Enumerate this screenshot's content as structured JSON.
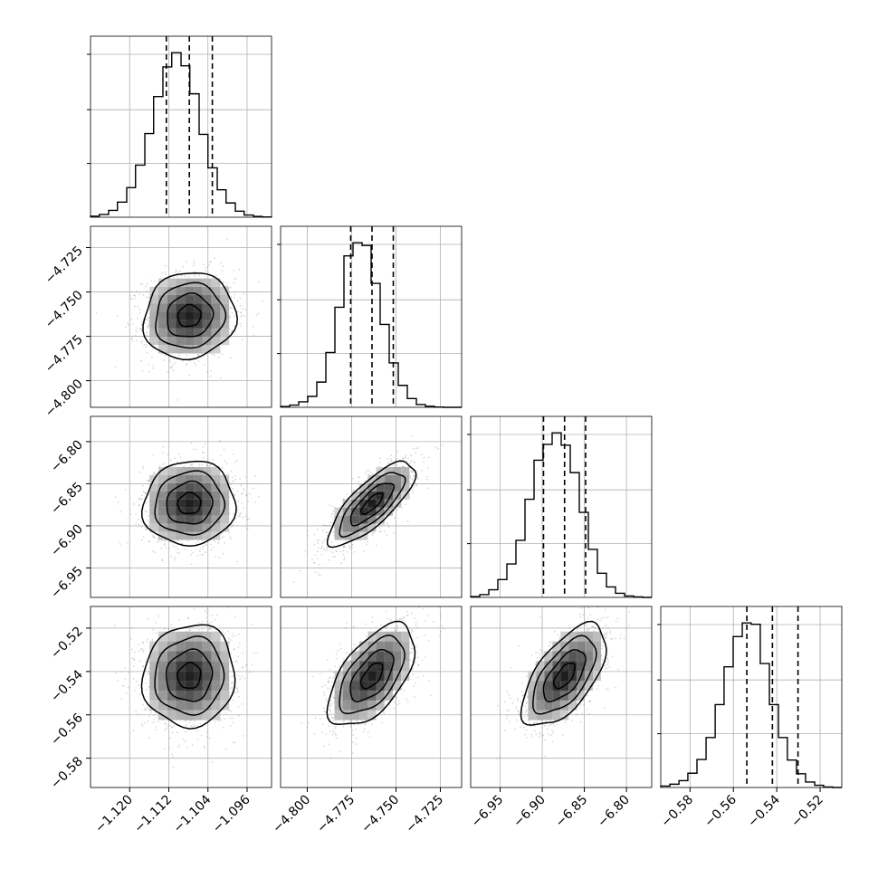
{
  "colors": {
    "line": "#000000",
    "grid": "#b0b0b0",
    "scatter": "#777777",
    "background": "#ffffff"
  },
  "chart_data": {
    "type": "corner",
    "grid": true,
    "n_params": 4,
    "params": [
      {
        "xlim": [
          -1.128,
          -1.091
        ],
        "ticks": [
          -1.12,
          -1.112,
          -1.104,
          -1.096
        ],
        "tick_labels": [
          "−1.120",
          "−1.112",
          "−1.104",
          "−1.096"
        ],
        "quantiles": [
          -1.1125,
          -1.1078,
          -1.1031
        ],
        "hist_bins": [
          -1.128,
          -1.1262,
          -1.1243,
          -1.1225,
          -1.1206,
          -1.1188,
          -1.1169,
          -1.1151,
          -1.1132,
          -1.1114,
          -1.1095,
          -1.1077,
          -1.1058,
          -1.104,
          -1.1021,
          -1.1003,
          -1.0984,
          -1.0966,
          -1.0947,
          -1.0929,
          -1.091
        ],
        "hist_counts": [
          4,
          10,
          25,
          55,
          108,
          190,
          305,
          440,
          548,
          600,
          552,
          450,
          302,
          180,
          100,
          52,
          22,
          8,
          3,
          1
        ]
      },
      {
        "xlim": [
          -4.815,
          -4.713
        ],
        "ticks": [
          -4.8,
          -4.775,
          -4.75,
          -4.725
        ],
        "tick_labels": [
          "−4.800",
          "−4.775",
          "−4.750",
          "−4.725"
        ],
        "quantiles": [
          -4.7755,
          -4.7635,
          -4.7515
        ],
        "hist_bins": [
          -4.815,
          -4.8099,
          -4.8048,
          -4.7997,
          -4.7946,
          -4.7895,
          -4.7844,
          -4.7793,
          -4.7742,
          -4.7691,
          -4.764,
          -4.7589,
          -4.7538,
          -4.7487,
          -4.7436,
          -4.7385,
          -4.7334,
          -4.7283,
          -4.7232,
          -4.7181,
          -4.713
        ],
        "hist_counts": [
          3,
          8,
          20,
          40,
          92,
          200,
          365,
          552,
          600,
          590,
          452,
          302,
          162,
          80,
          32,
          10,
          4,
          1,
          0,
          0
        ]
      },
      {
        "xlim": [
          -6.985,
          -6.77
        ],
        "ticks": [
          -6.95,
          -6.9,
          -6.85,
          -6.8
        ],
        "tick_labels": [
          "−6.95",
          "−6.90",
          "−6.85",
          "−6.80"
        ],
        "quantiles": [
          -6.8985,
          -6.8735,
          -6.8485
        ],
        "hist_bins": [
          -6.985,
          -6.97425,
          -6.9635,
          -6.95275,
          -6.942,
          -6.93125,
          -6.9205,
          -6.90975,
          -6.899,
          -6.88825,
          -6.8775,
          -6.86675,
          -6.856,
          -6.84525,
          -6.8345,
          -6.82375,
          -6.813,
          -6.80225,
          -6.7915,
          -6.78075,
          -6.77
        ],
        "hist_counts": [
          3,
          10,
          28,
          65,
          122,
          208,
          358,
          500,
          558,
          600,
          555,
          455,
          310,
          175,
          88,
          38,
          15,
          5,
          2,
          0
        ]
      },
      {
        "xlim": [
          -0.5935,
          -0.51
        ],
        "ticks": [
          -0.58,
          -0.56,
          -0.54,
          -0.52
        ],
        "tick_labels": [
          "−0.58",
          "−0.56",
          "−0.54",
          "−0.52"
        ],
        "quantiles": [
          -0.5538,
          -0.542,
          -0.5302
        ],
        "hist_bins": [
          -0.5935,
          -0.5893,
          -0.5851,
          -0.581,
          -0.5768,
          -0.5726,
          -0.5684,
          -0.5643,
          -0.5601,
          -0.5559,
          -0.5518,
          -0.5476,
          -0.5434,
          -0.5392,
          -0.5351,
          -0.5309,
          -0.5267,
          -0.5225,
          -0.5184,
          -0.5142,
          -0.51
        ],
        "hist_counts": [
          5,
          12,
          25,
          52,
          102,
          182,
          302,
          440,
          550,
          600,
          595,
          452,
          302,
          182,
          100,
          50,
          20,
          8,
          2,
          0
        ]
      }
    ],
    "pairs": [
      {
        "i": 1,
        "j": 0,
        "mean": [
          -1.1078,
          -4.7635
        ],
        "std": [
          0.0047,
          0.0122
        ],
        "rho": 0.08
      },
      {
        "i": 2,
        "j": 0,
        "mean": [
          -1.1078,
          -6.8735
        ],
        "std": [
          0.0047,
          0.025
        ],
        "rho": 0.05
      },
      {
        "i": 2,
        "j": 1,
        "mean": [
          -4.7635,
          -6.8735
        ],
        "std": [
          0.0122,
          0.025
        ],
        "rho": 0.78
      },
      {
        "i": 3,
        "j": 0,
        "mean": [
          -1.1078,
          -0.542
        ],
        "std": [
          0.0047,
          0.0118
        ],
        "rho": 0.06
      },
      {
        "i": 3,
        "j": 1,
        "mean": [
          -4.7635,
          -0.542
        ],
        "std": [
          0.0122,
          0.0118
        ],
        "rho": 0.58
      },
      {
        "i": 3,
        "j": 2,
        "mean": [
          -6.8735,
          -0.542
        ],
        "std": [
          0.025,
          0.0118
        ],
        "rho": 0.62
      }
    ],
    "contour_levels_sigma": [
      0.5,
      1.0,
      1.5,
      2.0
    ]
  }
}
